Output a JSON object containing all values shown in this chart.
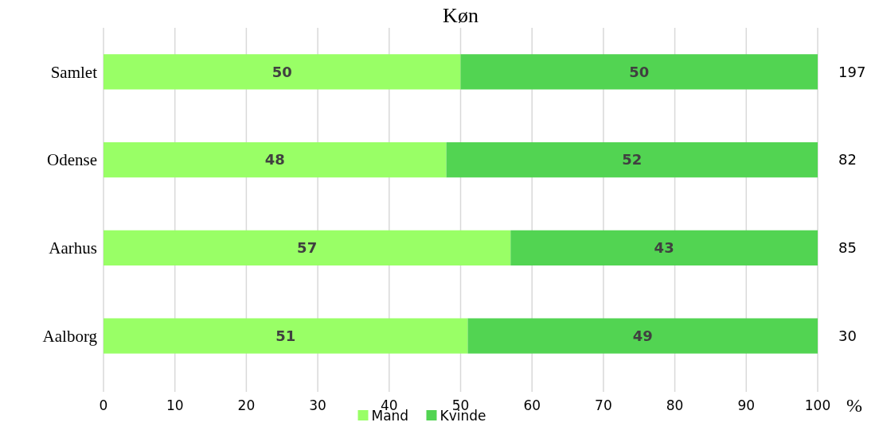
{
  "chart_data": {
    "type": "bar",
    "orientation": "horizontal",
    "stacked": true,
    "title": "Køn",
    "xlabel": "%",
    "categories": [
      "Samlet",
      "Odense",
      "Aarhus",
      "Aalborg"
    ],
    "series": [
      {
        "name": "Mand",
        "color": "#99ff66",
        "values": [
          50,
          48,
          57,
          51
        ]
      },
      {
        "name": "Kvinde",
        "color": "#52d452",
        "values": [
          50,
          52,
          43,
          49
        ]
      }
    ],
    "xlim": [
      0,
      100
    ],
    "xticks": [
      0,
      10,
      20,
      30,
      40,
      50,
      60,
      70,
      80,
      90,
      100
    ],
    "grid": "x",
    "data_labels": true,
    "legend": "bottom",
    "annotations": [
      "197",
      "82",
      "85",
      "30"
    ]
  }
}
